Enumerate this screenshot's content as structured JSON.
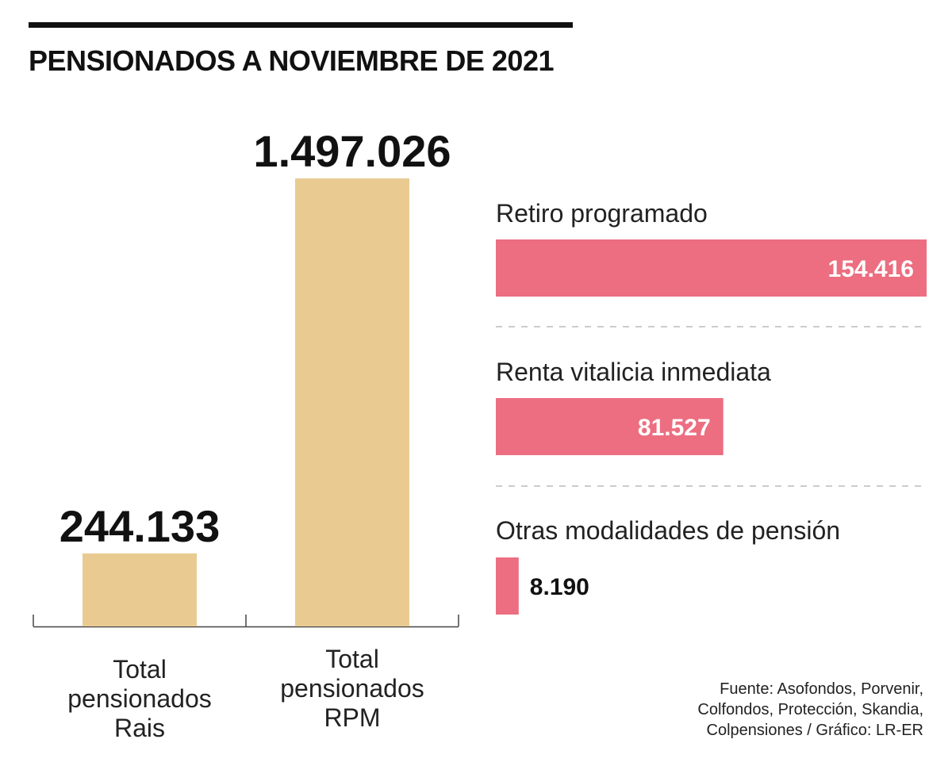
{
  "title": "PENSIONADOS A NOVIEMBRE DE 2021",
  "colors": {
    "vertical_bar": "#E9CB92",
    "horizontal_bar": "#EC6E80",
    "text": "#111111",
    "divider": "#BBBBBB"
  },
  "chart_data": [
    {
      "type": "bar",
      "orientation": "vertical",
      "categories": [
        [
          "Total",
          "pensionados",
          "Rais"
        ],
        [
          "Total",
          "pensionados",
          "RPM"
        ]
      ],
      "values": [
        244133,
        1497026
      ],
      "value_labels": [
        "244.133",
        "1.497.026"
      ]
    },
    {
      "type": "bar",
      "orientation": "horizontal",
      "categories": [
        "Retiro programado",
        "Renta vitalicia inmediata",
        "Otras modalidades de pensión"
      ],
      "values": [
        154416,
        81527,
        8190
      ],
      "value_labels": [
        "154.416",
        "81.527",
        "8.190"
      ]
    }
  ],
  "source_lines": [
    "Fuente: Asofondos, Porvenir,",
    "Colfondos, Protección, Skandia,",
    "Colpensiones / Gráfico: LR-ER"
  ]
}
